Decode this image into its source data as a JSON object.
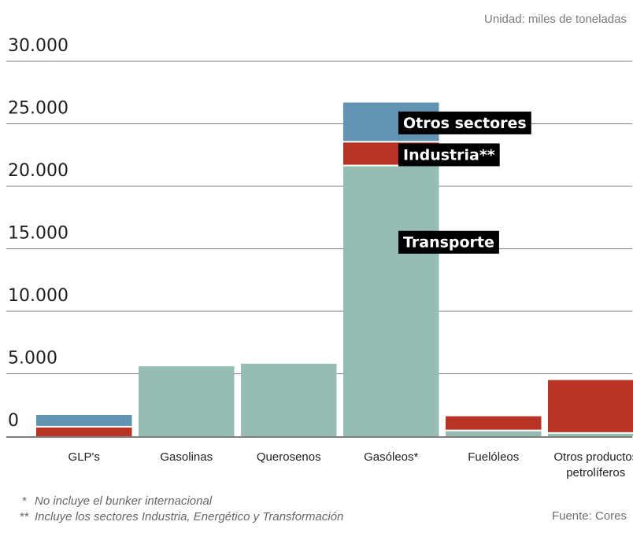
{
  "chart_data": {
    "type": "bar",
    "stacked": true,
    "categories": [
      "GLP's",
      "Gasolinas",
      "Querosenos",
      "Gasóleos*",
      "Fuelóleos",
      [
        "Otros productos",
        "petrolíferos"
      ]
    ],
    "series": [
      {
        "name": "Transporte",
        "color": "#96bdb4",
        "values": [
          0,
          5600,
          5800,
          21600,
          400,
          200
        ]
      },
      {
        "name": "Industria**",
        "color": "#b83324",
        "values": [
          700,
          0,
          0,
          1900,
          1200,
          4300
        ]
      },
      {
        "name": "Otros sectores",
        "color": "#6193b3",
        "values": [
          1000,
          0,
          0,
          3200,
          0,
          0
        ]
      }
    ],
    "yticks": [
      0,
      5000,
      10000,
      15000,
      20000,
      25000,
      30000
    ],
    "ytick_labels": [
      "0",
      "5.000",
      "10.000",
      "15.000",
      "20.000",
      "25.000",
      "30.000"
    ],
    "ylim": [
      0,
      30000
    ],
    "grid": true,
    "series_labels_on_bar": "Gasóleos*",
    "unit_label": "Unidad: miles de toneladas",
    "source": "Fuente: Cores",
    "notes": [
      {
        "mark": "*",
        "text": "No incluye el bunker internacional"
      },
      {
        "mark": "**",
        "text": "Incluye los sectores Industria, Energético y Transformación"
      }
    ]
  }
}
